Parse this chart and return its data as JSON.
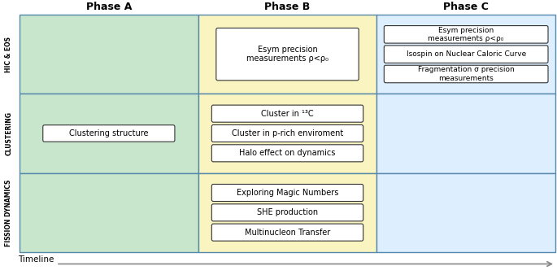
{
  "title_A": "Phase A",
  "title_B": "Phase B",
  "title_C": "Phase C",
  "row_labels": [
    "HIC & EOS",
    "CLUSTERING",
    "FISSION DYNAMICS"
  ],
  "timeline_label": "Timeline",
  "bg_color_A": "#c8e6cc",
  "bg_color_B": "#faf5c0",
  "bg_color_C_row0": "#ddeeff",
  "bg_color_C_row12": "#ddeeff",
  "box_fill": "#ffffff",
  "box_edge": "#555555",
  "cell_edge": "#5588aa",
  "phase_header_color": "#000000",
  "row_label_color": "#000000",
  "B_row0": "Esym precision\nmeasurements ρ<ρ₀",
  "B_row1": [
    "Cluster in ¹³C",
    "Cluster in p-rich enviroment",
    "Halo effect on dynamics"
  ],
  "B_row2": [
    "Exploring Magic Numbers",
    "SHE production",
    "Multinucleon Transfer"
  ],
  "A_row1": "Clustering structure",
  "C_row0": [
    "Esym precision\nmeasurements ρ<ρ₀",
    "Isospin on Nuclear Caloric Curve",
    "Fragmentation σ precision\nmeasurements"
  ]
}
